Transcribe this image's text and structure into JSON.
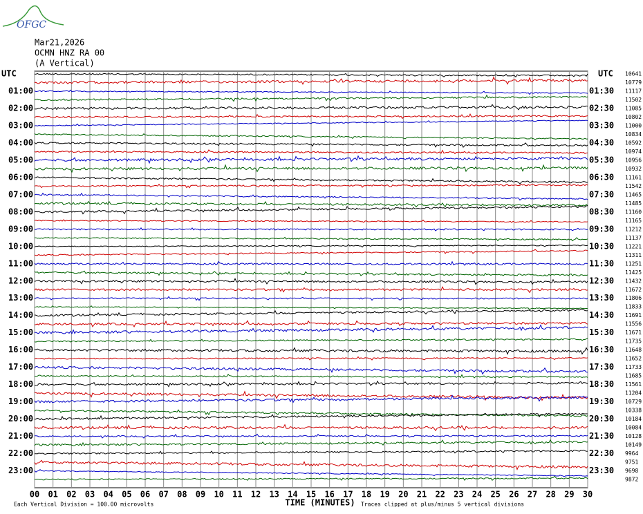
{
  "header": {
    "logo": "OFGC",
    "date": "Mar21,2026",
    "station": "OCMN HNZ RA 00",
    "component": "(A Vertical)"
  },
  "left_axis": {
    "title": "UTC",
    "labels": [
      "01:00",
      "02:00",
      "03:00",
      "04:00",
      "05:00",
      "06:00",
      "07:00",
      "08:00",
      "09:00",
      "10:00",
      "11:00",
      "12:00",
      "13:00",
      "14:00",
      "15:00",
      "16:00",
      "17:00",
      "18:00",
      "19:00",
      "20:00",
      "21:00",
      "22:00",
      "23:00"
    ]
  },
  "right_axis": {
    "title": "UTC",
    "labels": [
      "01:30",
      "02:30",
      "03:30",
      "04:30",
      "05:30",
      "06:30",
      "07:30",
      "08:30",
      "09:30",
      "10:30",
      "11:30",
      "12:30",
      "13:30",
      "14:30",
      "15:30",
      "16:30",
      "17:30",
      "18:30",
      "19:30",
      "20:30",
      "21:30",
      "22:30",
      "23:30"
    ]
  },
  "trace_colors": [
    "#000000",
    "#d00000",
    "#0000c8",
    "#006400"
  ],
  "trace_counts": [
    "10641",
    "10779",
    "11117",
    "11502",
    "11085",
    "10802",
    "11000",
    "10834",
    "10592",
    "10974",
    "10956",
    "10932",
    "11161",
    "11542",
    "11465",
    "11485",
    "11160",
    "11165",
    "11212",
    "11137",
    "11221",
    "11311",
    "11251",
    "11425",
    "11432",
    "11672",
    "11806",
    "11833",
    "11691",
    "11556",
    "11671",
    "11735",
    "11648",
    "11652",
    "11733",
    "11685",
    "11561",
    "11204",
    "10729",
    "10338",
    "10184",
    "10084",
    "10128",
    "10149",
    "9964",
    "9751",
    "9698",
    "9872"
  ],
  "x_axis": {
    "title": "TIME (MINUTES)",
    "ticks": [
      "00",
      "01",
      "02",
      "03",
      "04",
      "05",
      "06",
      "07",
      "08",
      "09",
      "10",
      "11",
      "12",
      "13",
      "14",
      "15",
      "16",
      "17",
      "18",
      "19",
      "20",
      "21",
      "22",
      "23",
      "24",
      "25",
      "26",
      "27",
      "28",
      "29",
      "30"
    ]
  },
  "footer": {
    "scale_note": "Each Vertical Division =  100.00 microvolts",
    "clip_note": "Traces clipped at plus/minus 5 vertical divisions"
  }
}
